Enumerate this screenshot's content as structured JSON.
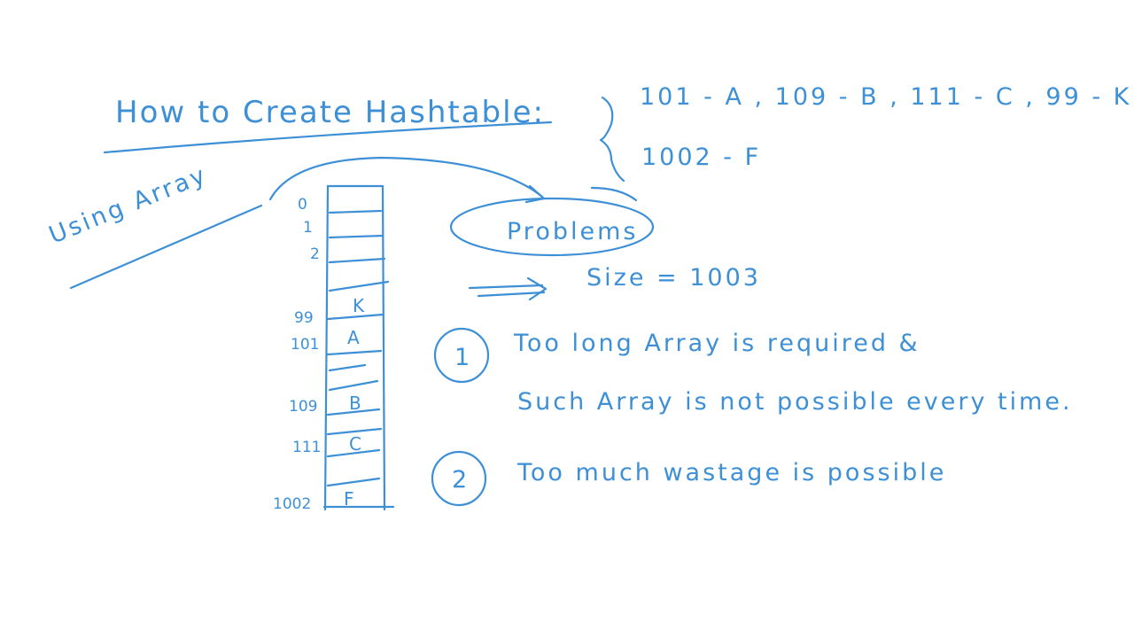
{
  "title": "How to Create Hashtable:",
  "mapping": {
    "line1": "101 - A , 109 - B , 111 - C , 99 - K",
    "line2": "1002 - F"
  },
  "approach": "Using Array",
  "array": {
    "indices": [
      "0",
      "1",
      "2",
      "99",
      "101",
      "109",
      "111",
      "1002"
    ],
    "cells": [
      "K",
      "A",
      "B",
      "C",
      "F"
    ]
  },
  "problems": {
    "label": "Problems",
    "size": "Size = 1003",
    "items": [
      {
        "number": "1",
        "line1": "Too long Array is required &",
        "line2": "Such Array is not possible every time."
      },
      {
        "number": "2",
        "line1": "Too much wastage is possible"
      }
    ]
  },
  "colors": {
    "ink": "#3d8fd6",
    "background": "#ffffff"
  }
}
